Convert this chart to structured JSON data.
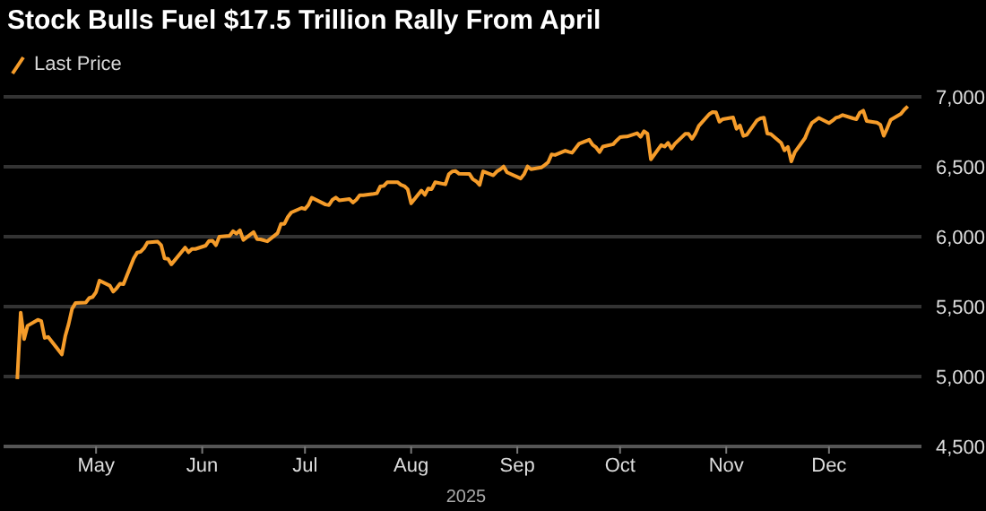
{
  "chart_data": {
    "type": "line",
    "title": "Stock Bulls Fuel $17.5 Trillion Rally From April",
    "xlabel": "2025",
    "x": [
      "2025-04-08",
      "2025-04-09",
      "2025-04-10",
      "2025-04-11",
      "2025-04-14",
      "2025-04-15",
      "2025-04-16",
      "2025-04-17",
      "2025-04-21",
      "2025-04-22",
      "2025-04-23",
      "2025-04-24",
      "2025-04-25",
      "2025-04-28",
      "2025-04-29",
      "2025-04-30",
      "2025-05-01",
      "2025-05-02",
      "2025-05-05",
      "2025-05-06",
      "2025-05-07",
      "2025-05-08",
      "2025-05-09",
      "2025-05-12",
      "2025-05-13",
      "2025-05-14",
      "2025-05-15",
      "2025-05-16",
      "2025-05-19",
      "2025-05-20",
      "2025-05-21",
      "2025-05-22",
      "2025-05-23",
      "2025-05-27",
      "2025-05-28",
      "2025-05-29",
      "2025-05-30",
      "2025-06-02",
      "2025-06-03",
      "2025-06-04",
      "2025-06-05",
      "2025-06-06",
      "2025-06-09",
      "2025-06-10",
      "2025-06-11",
      "2025-06-12",
      "2025-06-13",
      "2025-06-16",
      "2025-06-17",
      "2025-06-18",
      "2025-06-20",
      "2025-06-23",
      "2025-06-24",
      "2025-06-25",
      "2025-06-26",
      "2025-06-27",
      "2025-06-30",
      "2025-07-01",
      "2025-07-02",
      "2025-07-03",
      "2025-07-07",
      "2025-07-08",
      "2025-07-09",
      "2025-07-10",
      "2025-07-11",
      "2025-07-14",
      "2025-07-15",
      "2025-07-16",
      "2025-07-17",
      "2025-07-18",
      "2025-07-21",
      "2025-07-22",
      "2025-07-23",
      "2025-07-24",
      "2025-07-25",
      "2025-07-28",
      "2025-07-29",
      "2025-07-30",
      "2025-07-31",
      "2025-08-01",
      "2025-08-04",
      "2025-08-05",
      "2025-08-06",
      "2025-08-07",
      "2025-08-08",
      "2025-08-11",
      "2025-08-12",
      "2025-08-13",
      "2025-08-14",
      "2025-08-15",
      "2025-08-18",
      "2025-08-19",
      "2025-08-20",
      "2025-08-21",
      "2025-08-22",
      "2025-08-25",
      "2025-08-26",
      "2025-08-27",
      "2025-08-28",
      "2025-08-29",
      "2025-09-02",
      "2025-09-03",
      "2025-09-04",
      "2025-09-05",
      "2025-09-08",
      "2025-09-09",
      "2025-09-10",
      "2025-09-11",
      "2025-09-12",
      "2025-09-15",
      "2025-09-16",
      "2025-09-17",
      "2025-09-18",
      "2025-09-19",
      "2025-09-22",
      "2025-09-23",
      "2025-09-24",
      "2025-09-25",
      "2025-09-26",
      "2025-09-29",
      "2025-09-30",
      "2025-10-01",
      "2025-10-02",
      "2025-10-03",
      "2025-10-06",
      "2025-10-07",
      "2025-10-08",
      "2025-10-09",
      "2025-10-10",
      "2025-10-13",
      "2025-10-14",
      "2025-10-15",
      "2025-10-16",
      "2025-10-17",
      "2025-10-20",
      "2025-10-21",
      "2025-10-22",
      "2025-10-23",
      "2025-10-24",
      "2025-10-27",
      "2025-10-28",
      "2025-10-29",
      "2025-10-30",
      "2025-10-31",
      "2025-11-03",
      "2025-11-04",
      "2025-11-05",
      "2025-11-06",
      "2025-11-07",
      "2025-11-10",
      "2025-11-11",
      "2025-11-12",
      "2025-11-13",
      "2025-11-14",
      "2025-11-17",
      "2025-11-18",
      "2025-11-19",
      "2025-11-20",
      "2025-11-21",
      "2025-11-24",
      "2025-11-25",
      "2025-11-26",
      "2025-11-28",
      "2025-12-01",
      "2025-12-02",
      "2025-12-03",
      "2025-12-04",
      "2025-12-05",
      "2025-12-08",
      "2025-12-09",
      "2025-12-10",
      "2025-12-11",
      "2025-12-12",
      "2025-12-15",
      "2025-12-16",
      "2025-12-17",
      "2025-12-18",
      "2025-12-19",
      "2025-12-22",
      "2025-12-23",
      "2025-12-24"
    ],
    "series": [
      {
        "name": "Last Price",
        "color": "#f59c2a",
        "values": [
          4982,
          5457,
          5268,
          5363,
          5406,
          5397,
          5276,
          5283,
          5158,
          5288,
          5376,
          5485,
          5525,
          5529,
          5561,
          5569,
          5604,
          5686,
          5650,
          5607,
          5631,
          5664,
          5660,
          5844,
          5886,
          5892,
          5917,
          5958,
          5964,
          5940,
          5845,
          5842,
          5802,
          5922,
          5889,
          5912,
          5912,
          5936,
          5970,
          5971,
          5939,
          6000,
          6006,
          6039,
          6022,
          6045,
          5977,
          6033,
          5983,
          5981,
          5967,
          6025,
          6092,
          6092,
          6141,
          6173,
          6205,
          6198,
          6227,
          6279,
          6230,
          6226,
          6263,
          6280,
          6260,
          6269,
          6244,
          6264,
          6297,
          6297,
          6306,
          6310,
          6359,
          6363,
          6389,
          6390,
          6371,
          6362,
          6339,
          6238,
          6330,
          6299,
          6345,
          6340,
          6389,
          6374,
          6446,
          6466,
          6469,
          6450,
          6449,
          6411,
          6396,
          6370,
          6467,
          6439,
          6466,
          6481,
          6502,
          6460,
          6416,
          6448,
          6502,
          6482,
          6495,
          6512,
          6532,
          6588,
          6584,
          6615,
          6607,
          6600,
          6632,
          6664,
          6693,
          6656,
          6638,
          6605,
          6644,
          6661,
          6688,
          6711,
          6715,
          6716,
          6740,
          6714,
          6754,
          6736,
          6553,
          6655,
          6644,
          6671,
          6630,
          6664,
          6735,
          6735,
          6699,
          6738,
          6792,
          6875,
          6891,
          6890,
          6822,
          6840,
          6852,
          6771,
          6796,
          6720,
          6728,
          6832,
          6846,
          6851,
          6737,
          6734,
          6672,
          6617,
          6642,
          6538,
          6603,
          6705,
          6766,
          6813,
          6849,
          6812,
          6829,
          6850,
          6857,
          6870,
          6846,
          6840,
          6887,
          6901,
          6827,
          6816,
          6800,
          6721,
          6775,
          6835,
          6878,
          6909,
          6932
        ]
      }
    ],
    "xlim": [
      "2025-04-04",
      "2025-12-28"
    ],
    "xticks": [
      {
        "value": "2025-05-01",
        "label": "May"
      },
      {
        "value": "2025-06-01",
        "label": "Jun"
      },
      {
        "value": "2025-07-01",
        "label": "Jul"
      },
      {
        "value": "2025-08-01",
        "label": "Aug"
      },
      {
        "value": "2025-09-01",
        "label": "Sep"
      },
      {
        "value": "2025-10-01",
        "label": "Oct"
      },
      {
        "value": "2025-11-01",
        "label": "Nov"
      },
      {
        "value": "2025-12-01",
        "label": "Dec"
      }
    ],
    "ylim": [
      4500,
      7000
    ],
    "yticks": [
      {
        "value": 4500,
        "label": "4,500"
      },
      {
        "value": 5000,
        "label": "5,000"
      },
      {
        "value": 5500,
        "label": "5,500"
      },
      {
        "value": 6000,
        "label": "6,000"
      },
      {
        "value": 6500,
        "label": "6,500"
      },
      {
        "value": 7000,
        "label": "7,000"
      }
    ],
    "grid": "y",
    "legend": "top left",
    "marker": "none",
    "line_style": "solid"
  }
}
